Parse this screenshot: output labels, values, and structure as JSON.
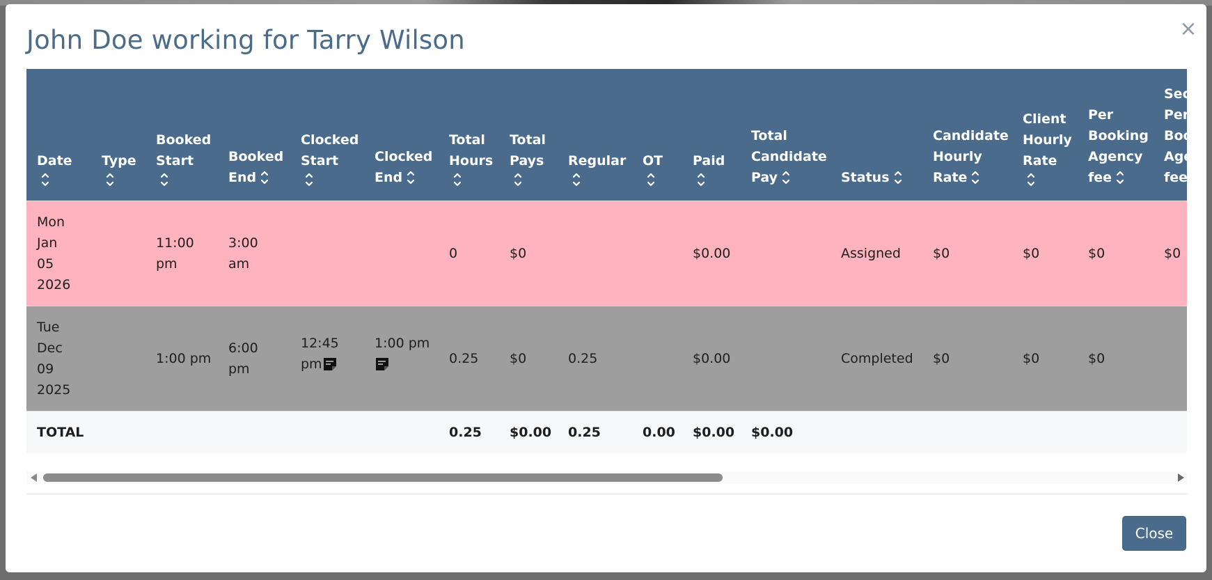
{
  "modal": {
    "title": "John Doe working for Tarry Wilson",
    "close_icon": "×",
    "close_button_label": "Close"
  },
  "table": {
    "headers": [
      [
        "Date"
      ],
      [
        "Type"
      ],
      [
        "Booked",
        "Start"
      ],
      [
        "Booked",
        "End"
      ],
      [
        "Clocked",
        "Start"
      ],
      [
        "Clocked",
        "End"
      ],
      [
        "Total",
        "Hours"
      ],
      [
        "Total",
        "Pays"
      ],
      [
        "Regular"
      ],
      [
        "OT"
      ],
      [
        "Paid"
      ],
      [
        "Total",
        "Candidate",
        "Pay"
      ],
      [
        "Status"
      ],
      [
        "Candidate",
        "Hourly",
        "Rate"
      ],
      [
        "Client",
        "Hourly",
        "Rate"
      ],
      [
        "Per",
        "Booking",
        "Agency",
        "fee"
      ],
      [
        "Seco",
        "Per",
        "Boo",
        "Age",
        "fee"
      ]
    ],
    "rows": [
      {
        "status_color": "#ffb3bf",
        "date": [
          "Mon",
          "Jan",
          "05",
          "2026"
        ],
        "type": "",
        "booked_start": [
          "11:00",
          "pm"
        ],
        "booked_end": [
          "3:00",
          "am"
        ],
        "clocked_start": "",
        "clocked_end": "",
        "total_hours": "0",
        "total_pays": "$0",
        "regular": "",
        "ot": "",
        "paid": "$0.00",
        "total_candidate_pay": "",
        "status": "Assigned",
        "candidate_hourly_rate": "$0",
        "client_hourly_rate": "$0",
        "per_booking_agency_fee": "$0",
        "second_per_booking_agency_fee": "$0"
      },
      {
        "status_color": "#9e9e9e",
        "date": [
          "Tue",
          "Dec",
          "09",
          "2025"
        ],
        "type": "",
        "booked_start": [
          "1:00 pm"
        ],
        "booked_end": [
          "6:00",
          "pm"
        ],
        "clocked_start": [
          "12:45",
          "pm"
        ],
        "clocked_end": [
          "1:00 pm"
        ],
        "total_hours": "0.25",
        "total_pays": "$0",
        "regular": "0.25",
        "ot": "",
        "paid": "$0.00",
        "total_candidate_pay": "",
        "status": "Completed",
        "candidate_hourly_rate": "$0",
        "client_hourly_rate": "$0",
        "per_booking_agency_fee": "$0",
        "second_per_booking_agency_fee": ""
      }
    ],
    "total_row": {
      "label": "TOTAL",
      "total_hours": "0.25",
      "total_pays": "$0.00",
      "regular": "0.25",
      "ot": "0.00",
      "paid": "$0.00",
      "total_candidate_pay": "$0.00"
    }
  },
  "icons": {
    "sort": "sort-icon",
    "note": "note-icon",
    "close": "close-icon"
  }
}
